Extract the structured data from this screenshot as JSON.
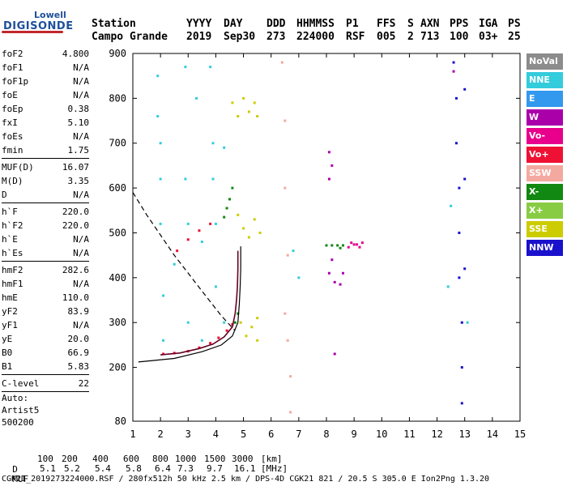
{
  "logo": {
    "line1": "Lowell",
    "line2": "DIGISONDE"
  },
  "header": {
    "row1": [
      "Station",
      "YYYY",
      "DAY",
      "DDD",
      "HHMMSS",
      "P1",
      "FFS",
      "S",
      "AXN",
      "PPS",
      "IGA",
      "PS"
    ],
    "row2": [
      "Campo Grande",
      "2019",
      "Sep30",
      "273",
      "224000",
      "RSF",
      "005",
      "2",
      "713",
      "100",
      "03+",
      "25"
    ]
  },
  "params": [
    [
      {
        "name": "foF2",
        "value": "4.800"
      },
      {
        "name": "foF1",
        "value": "N/A"
      },
      {
        "name": "foF1p",
        "value": "N/A"
      },
      {
        "name": "foE",
        "value": "N/A"
      },
      {
        "name": "foEp",
        "value": "0.38"
      },
      {
        "name": "fxI",
        "value": "5.10"
      },
      {
        "name": "foEs",
        "value": "N/A"
      },
      {
        "name": "fmin",
        "value": "1.75"
      }
    ],
    [
      {
        "name": "MUF(D)",
        "value": "16.07"
      },
      {
        "name": "M(D)",
        "value": "3.35"
      },
      {
        "name": "D",
        "value": "N/A"
      }
    ],
    [
      {
        "name": "h`F",
        "value": "220.0"
      },
      {
        "name": "h`F2",
        "value": "220.0"
      },
      {
        "name": "h`E",
        "value": "N/A"
      },
      {
        "name": "h`Es",
        "value": "N/A"
      }
    ],
    [
      {
        "name": "hmF2",
        "value": "282.6"
      },
      {
        "name": "hmF1",
        "value": "N/A"
      },
      {
        "name": "hmE",
        "value": "110.0"
      },
      {
        "name": "yF2",
        "value": "83.9"
      },
      {
        "name": "yF1",
        "value": "N/A"
      },
      {
        "name": "yE",
        "value": "20.0"
      },
      {
        "name": "B0",
        "value": "66.9"
      },
      {
        "name": "B1",
        "value": "5.83"
      }
    ],
    [
      {
        "name": "C-level",
        "value": "22"
      }
    ]
  ],
  "auto": {
    "line1": "Auto:",
    "line2": "Artist5",
    "line3": "500200"
  },
  "legend": [
    {
      "label": "NoVal",
      "color": "#8c8c8c"
    },
    {
      "label": "NNE",
      "color": "#33ccdd"
    },
    {
      "label": "E",
      "color": "#3399ee"
    },
    {
      "label": "W",
      "color": "#aa00aa"
    },
    {
      "label": "Vo-",
      "color": "#e8008c"
    },
    {
      "label": "Vo+",
      "color": "#ee1133"
    },
    {
      "label": "SSW",
      "color": "#f4a9a0"
    },
    {
      "label": "X-",
      "color": "#118811"
    },
    {
      "label": "X+",
      "color": "#88cc44"
    },
    {
      "label": "SSE",
      "color": "#cccc00"
    },
    {
      "label": "NNW",
      "color": "#1a11cc"
    }
  ],
  "chart_data": {
    "type": "scatter",
    "title": "",
    "xlabel": "",
    "ylabel": "",
    "xlim": [
      1,
      15
    ],
    "ylim": [
      80,
      900
    ],
    "x_ticks": [
      1,
      2,
      3,
      4,
      5,
      6,
      7,
      8,
      9,
      10,
      11,
      12,
      13,
      14,
      15
    ],
    "y_ticks": [
      80,
      200,
      300,
      400,
      500,
      600,
      700,
      800,
      900
    ],
    "series": [
      {
        "name": "NNE",
        "color": "#33ccdd",
        "points": [
          [
            1.9,
            850
          ],
          [
            1.9,
            760
          ],
          [
            2.0,
            700
          ],
          [
            2.0,
            620
          ],
          [
            2.0,
            520
          ],
          [
            2.1,
            360
          ],
          [
            2.1,
            260
          ],
          [
            2.5,
            430
          ],
          [
            2.9,
            870
          ],
          [
            2.9,
            620
          ],
          [
            3.0,
            520
          ],
          [
            3.0,
            300
          ],
          [
            3.3,
            800
          ],
          [
            3.5,
            480
          ],
          [
            3.5,
            260
          ],
          [
            3.8,
            870
          ],
          [
            3.9,
            700
          ],
          [
            3.9,
            620
          ],
          [
            4.0,
            520
          ],
          [
            4.0,
            380
          ],
          [
            4.3,
            690
          ],
          [
            4.3,
            300
          ],
          [
            6.8,
            460
          ],
          [
            7.0,
            400
          ],
          [
            12.4,
            380
          ],
          [
            12.5,
            560
          ],
          [
            13.1,
            300
          ]
        ]
      },
      {
        "name": "SSE",
        "color": "#cccc00",
        "points": [
          [
            4.6,
            790
          ],
          [
            4.8,
            760
          ],
          [
            5.0,
            800
          ],
          [
            5.2,
            770
          ],
          [
            5.4,
            790
          ],
          [
            5.5,
            760
          ],
          [
            4.8,
            540
          ],
          [
            5.0,
            510
          ],
          [
            5.2,
            490
          ],
          [
            5.4,
            530
          ],
          [
            5.6,
            500
          ],
          [
            4.9,
            300
          ],
          [
            5.1,
            270
          ],
          [
            5.3,
            290
          ],
          [
            5.5,
            260
          ],
          [
            5.5,
            310
          ]
        ]
      },
      {
        "name": "SSW",
        "color": "#f4a9a0",
        "points": [
          [
            6.4,
            880
          ],
          [
            6.5,
            750
          ],
          [
            6.5,
            600
          ],
          [
            6.6,
            450
          ],
          [
            6.5,
            320
          ],
          [
            6.6,
            260
          ],
          [
            6.7,
            180
          ],
          [
            6.7,
            100
          ]
        ]
      },
      {
        "name": "NNW",
        "color": "#1a11cc",
        "points": [
          [
            12.6,
            880
          ],
          [
            12.7,
            800
          ],
          [
            12.7,
            700
          ],
          [
            12.8,
            600
          ],
          [
            12.8,
            500
          ],
          [
            12.8,
            400
          ],
          [
            12.9,
            300
          ],
          [
            12.9,
            200
          ],
          [
            12.9,
            120
          ],
          [
            13.0,
            820
          ],
          [
            13.0,
            620
          ],
          [
            13.0,
            420
          ]
        ]
      },
      {
        "name": "X-",
        "color": "#118811",
        "points": [
          [
            8.0,
            472
          ],
          [
            8.2,
            472
          ],
          [
            8.4,
            472
          ],
          [
            8.6,
            472
          ],
          [
            8.5,
            466
          ],
          [
            4.3,
            535
          ],
          [
            4.4,
            555
          ],
          [
            4.5,
            575
          ],
          [
            4.6,
            600
          ],
          [
            4.7,
            300
          ],
          [
            4.8,
            320
          ]
        ]
      },
      {
        "name": "Vo-",
        "color": "#e8008c",
        "points": [
          [
            8.9,
            478
          ],
          [
            9.1,
            474
          ],
          [
            9.3,
            478
          ],
          [
            8.8,
            468
          ],
          [
            9.2,
            468
          ],
          [
            9.0,
            474
          ]
        ]
      },
      {
        "name": "W",
        "color": "#aa00aa",
        "points": [
          [
            8.1,
            680
          ],
          [
            8.2,
            650
          ],
          [
            8.1,
            620
          ],
          [
            8.2,
            440
          ],
          [
            8.1,
            410
          ],
          [
            8.3,
            390
          ],
          [
            8.6,
            410
          ],
          [
            8.5,
            385
          ],
          [
            8.3,
            230
          ],
          [
            12.6,
            860
          ]
        ]
      },
      {
        "name": "Vo+",
        "color": "#ee1133",
        "points": [
          [
            2.1,
            230
          ],
          [
            2.5,
            232
          ],
          [
            3.0,
            236
          ],
          [
            3.4,
            244
          ],
          [
            3.8,
            254
          ],
          [
            4.1,
            266
          ],
          [
            4.4,
            282
          ],
          [
            4.6,
            296
          ],
          [
            2.6,
            460
          ],
          [
            3.0,
            485
          ],
          [
            3.4,
            505
          ],
          [
            3.8,
            520
          ]
        ]
      }
    ],
    "profile_dashed": [
      [
        1,
        590
      ],
      [
        1.5,
        540
      ],
      [
        2.5,
        450
      ],
      [
        3.5,
        370
      ],
      [
        4.2,
        315
      ],
      [
        4.5,
        295
      ],
      [
        4.7,
        282
      ]
    ],
    "profile_solid": [
      [
        1.2,
        212
      ],
      [
        2.5,
        220
      ],
      [
        3.5,
        235
      ],
      [
        4.2,
        250
      ],
      [
        4.6,
        270
      ],
      [
        4.8,
        300
      ],
      [
        4.85,
        340
      ],
      [
        4.88,
        380
      ],
      [
        4.9,
        420
      ],
      [
        4.9,
        440
      ],
      [
        4.9,
        470
      ]
    ],
    "trace_dark": [
      [
        2.0,
        228
      ],
      [
        2.7,
        232
      ],
      [
        3.4,
        242
      ],
      [
        3.9,
        252
      ],
      [
        4.3,
        268
      ],
      [
        4.6,
        290
      ],
      [
        4.7,
        320
      ],
      [
        4.75,
        350
      ],
      [
        4.78,
        380
      ],
      [
        4.8,
        420
      ],
      [
        4.8,
        460
      ]
    ],
    "footer": {
      "d_label": "D",
      "d_values": [
        "100",
        "200",
        "400",
        "600",
        "800",
        "1000",
        "1500",
        "3000"
      ],
      "d_unit": "[km]",
      "muf_label": "MUF",
      "muf_values": [
        "5.1",
        "5.2",
        "5.4",
        "5.8",
        "6.4",
        "7.3",
        "9.7",
        "16.1"
      ],
      "muf_unit": "[MHz]",
      "info": "CGK21_2019273224000.RSF / 280fx512h 50 kHz 2.5 km / DPS-4D CGK21 821 / 20.5 S 305.0 E Ion2Png 1.3.20"
    }
  }
}
